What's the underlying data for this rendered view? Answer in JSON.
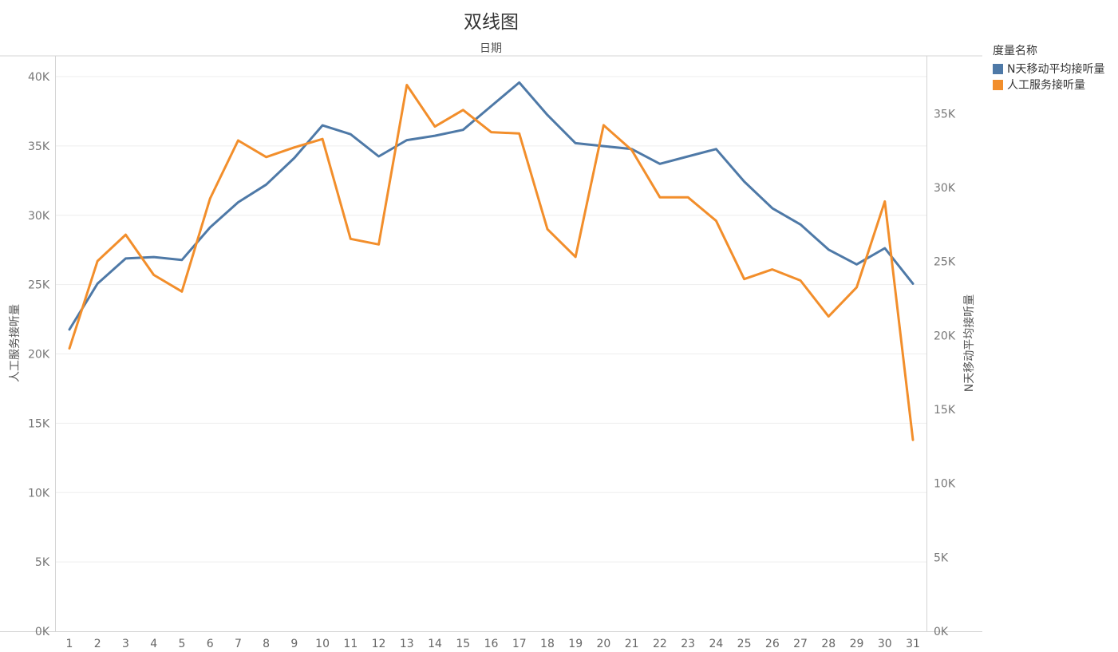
{
  "chart_data": {
    "type": "line",
    "title": "双线图",
    "xlabel": "日期",
    "ylabel_left": "人工服务接听量",
    "ylabel_right": "N天移动平均接听量",
    "categories": [
      "1",
      "2",
      "3",
      "4",
      "5",
      "6",
      "7",
      "8",
      "9",
      "10",
      "11",
      "12",
      "13",
      "14",
      "15",
      "16",
      "17",
      "18",
      "19",
      "20",
      "21",
      "22",
      "23",
      "24",
      "25",
      "26",
      "27",
      "28",
      "29",
      "30",
      "31"
    ],
    "left_axis": {
      "ylim": [
        0,
        41500
      ],
      "ticks": [
        0,
        5000,
        10000,
        15000,
        20000,
        25000,
        30000,
        35000,
        40000
      ],
      "tick_labels": [
        "0K",
        "5K",
        "10K",
        "15K",
        "20K",
        "25K",
        "30K",
        "35K",
        "40K"
      ]
    },
    "right_axis": {
      "ylim": [
        0,
        38900
      ],
      "ticks": [
        0,
        5000,
        10000,
        15000,
        20000,
        25000,
        30000,
        35000
      ],
      "tick_labels": [
        "0K",
        "5K",
        "10K",
        "15K",
        "20K",
        "25K",
        "30K",
        "35K"
      ]
    },
    "legend": {
      "title": "度量名称",
      "position": "top-right"
    },
    "grid": true,
    "series": [
      {
        "name": "N天移动平均接听量",
        "axis": "right",
        "color": "#4e79a7",
        "values": [
          20400,
          23500,
          25200,
          25300,
          25100,
          27300,
          29000,
          30200,
          32000,
          34200,
          33600,
          32100,
          33200,
          33500,
          33900,
          35500,
          37100,
          34900,
          33000,
          32800,
          32600,
          31600,
          32100,
          32600,
          30400,
          28600,
          27500,
          25800,
          24800,
          25900,
          23500
        ]
      },
      {
        "name": "人工服务接听量",
        "axis": "left",
        "color": "#f28e2b",
        "values": [
          20400,
          26700,
          28600,
          25700,
          24500,
          31200,
          35400,
          34200,
          34900,
          35500,
          28300,
          27900,
          39400,
          36400,
          37600,
          36000,
          35900,
          29000,
          27000,
          36500,
          34700,
          31300,
          31300,
          29600,
          25400,
          26100,
          25300,
          22700,
          24800,
          31000,
          13800
        ]
      }
    ]
  }
}
